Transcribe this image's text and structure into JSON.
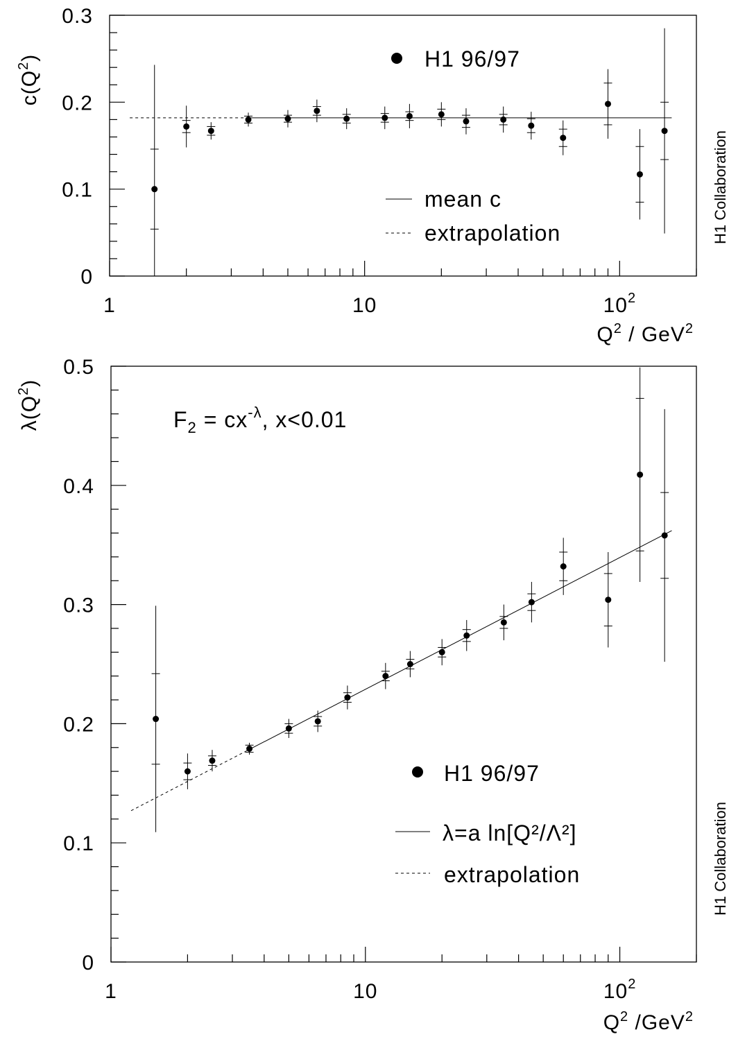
{
  "chart_data": [
    {
      "type": "scatter",
      "id": "top",
      "ylabel": "c(Q²)",
      "xlabel": "Q² / GeV²",
      "xscale": "log",
      "xlim": [
        1,
        200
      ],
      "ylim": [
        0,
        0.3
      ],
      "x_ticks": [
        {
          "value": 1,
          "label": "1"
        },
        {
          "value": 10,
          "label": "10"
        },
        {
          "value": 100,
          "label": "10",
          "sup": "2"
        }
      ],
      "y_ticks": [
        {
          "value": 0,
          "label": "0"
        },
        {
          "value": 0.1,
          "label": "0.1"
        },
        {
          "value": 0.2,
          "label": "0.2"
        },
        {
          "value": 0.3,
          "label": "0.3"
        }
      ],
      "side_label": "H1 Collaboration",
      "series": [
        {
          "name": "H1 96/97",
          "points": [
            {
              "x": 1.5,
              "y": 0.1,
              "stat": 0.046,
              "tot": 0.143
            },
            {
              "x": 2.0,
              "y": 0.172,
              "stat": 0.007,
              "tot": 0.024
            },
            {
              "x": 2.5,
              "y": 0.167,
              "stat": 0.005,
              "tot": 0.01
            },
            {
              "x": 3.5,
              "y": 0.18,
              "stat": 0.004,
              "tot": 0.008
            },
            {
              "x": 5.0,
              "y": 0.181,
              "stat": 0.004,
              "tot": 0.01
            },
            {
              "x": 6.5,
              "y": 0.19,
              "stat": 0.005,
              "tot": 0.013
            },
            {
              "x": 8.5,
              "y": 0.181,
              "stat": 0.005,
              "tot": 0.012
            },
            {
              "x": 12.0,
              "y": 0.182,
              "stat": 0.005,
              "tot": 0.013
            },
            {
              "x": 15.0,
              "y": 0.184,
              "stat": 0.005,
              "tot": 0.014
            },
            {
              "x": 20.0,
              "y": 0.186,
              "stat": 0.006,
              "tot": 0.014
            },
            {
              "x": 25.0,
              "y": 0.178,
              "stat": 0.007,
              "tot": 0.015
            },
            {
              "x": 35.0,
              "y": 0.18,
              "stat": 0.006,
              "tot": 0.015
            },
            {
              "x": 45.0,
              "y": 0.173,
              "stat": 0.008,
              "tot": 0.016
            },
            {
              "x": 60.0,
              "y": 0.159,
              "stat": 0.01,
              "tot": 0.02
            },
            {
              "x": 90.0,
              "y": 0.198,
              "stat": 0.024,
              "tot": 0.04
            },
            {
              "x": 120.0,
              "y": 0.117,
              "stat": 0.032,
              "tot": 0.052
            },
            {
              "x": 150.0,
              "y": 0.167,
              "stat": 0.033,
              "tot": 0.118
            }
          ]
        }
      ],
      "fit": {
        "name": "mean c",
        "value": 0.182,
        "x_from": 3.5,
        "x_to": 160
      },
      "extrapolation": {
        "name": "extrapolation",
        "value": 0.182,
        "x_from": 1.2,
        "x_to": 3.5
      },
      "legend": {
        "marker_label": "H1 96/97",
        "line_label": "mean c",
        "dash_label": "extrapolation"
      }
    },
    {
      "type": "scatter",
      "id": "bottom",
      "ylabel": "λ(Q²)",
      "xlabel": "Q² /GeV²",
      "xscale": "log",
      "xlim": [
        1,
        200
      ],
      "ylim": [
        0,
        0.5
      ],
      "x_ticks": [
        {
          "value": 1,
          "label": "1"
        },
        {
          "value": 10,
          "label": "10"
        },
        {
          "value": 100,
          "label": "10",
          "sup": "2"
        }
      ],
      "y_ticks": [
        {
          "value": 0,
          "label": "0"
        },
        {
          "value": 0.1,
          "label": "0.1"
        },
        {
          "value": 0.2,
          "label": "0.2"
        },
        {
          "value": 0.3,
          "label": "0.3"
        },
        {
          "value": 0.4,
          "label": "0.4"
        },
        {
          "value": 0.5,
          "label": "0.5"
        }
      ],
      "side_label": "H1 Collaboration",
      "annotation": {
        "text": "F₂ = cx",
        "sup": "-λ",
        "rest": ",  x<0.01"
      },
      "series": [
        {
          "name": "H1 96/97",
          "points": [
            {
              "x": 1.5,
              "y": 0.204,
              "stat": 0.038,
              "tot": 0.095
            },
            {
              "x": 2.0,
              "y": 0.16,
              "stat": 0.007,
              "tot": 0.015
            },
            {
              "x": 2.5,
              "y": 0.169,
              "stat": 0.004,
              "tot": 0.009
            },
            {
              "x": 3.5,
              "y": 0.179,
              "stat": 0.003,
              "tot": 0.005
            },
            {
              "x": 5.0,
              "y": 0.196,
              "stat": 0.004,
              "tot": 0.008
            },
            {
              "x": 6.5,
              "y": 0.202,
              "stat": 0.004,
              "tot": 0.009
            },
            {
              "x": 8.5,
              "y": 0.222,
              "stat": 0.004,
              "tot": 0.01
            },
            {
              "x": 12.0,
              "y": 0.24,
              "stat": 0.004,
              "tot": 0.011
            },
            {
              "x": 15.0,
              "y": 0.25,
              "stat": 0.004,
              "tot": 0.011
            },
            {
              "x": 20.0,
              "y": 0.26,
              "stat": 0.004,
              "tot": 0.011
            },
            {
              "x": 25.0,
              "y": 0.274,
              "stat": 0.005,
              "tot": 0.013
            },
            {
              "x": 35.0,
              "y": 0.285,
              "stat": 0.005,
              "tot": 0.015
            },
            {
              "x": 45.0,
              "y": 0.302,
              "stat": 0.007,
              "tot": 0.017
            },
            {
              "x": 60.0,
              "y": 0.332,
              "stat": 0.012,
              "tot": 0.024
            },
            {
              "x": 90.0,
              "y": 0.304,
              "stat": 0.022,
              "tot": 0.04
            },
            {
              "x": 120.0,
              "y": 0.409,
              "stat": 0.064,
              "tot": 0.09
            },
            {
              "x": 150.0,
              "y": 0.358,
              "stat": 0.036,
              "tot": 0.106
            }
          ]
        }
      ],
      "fit": {
        "name": "λ=a ln[Q²/Λ²]",
        "y_at_1_2": 0.127,
        "y_at_160": 0.362,
        "x_from": 3.5,
        "x_to": 160
      },
      "extrapolation": {
        "name": "extrapolation",
        "x_from": 1.2,
        "x_to": 3.5
      },
      "legend": {
        "marker_label": "H1 96/97",
        "line_label": "λ=a ln[Q²/Λ²]",
        "dash_label": "extrapolation"
      }
    }
  ]
}
